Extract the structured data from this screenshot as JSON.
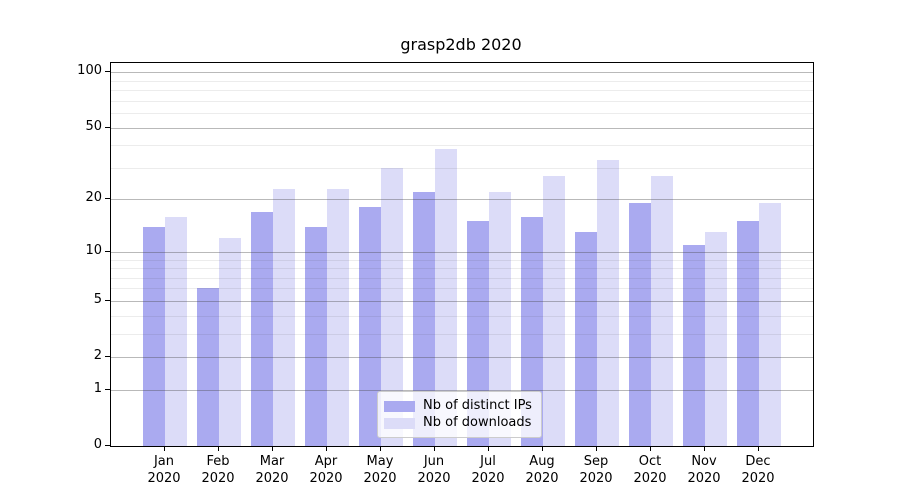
{
  "chart_data": {
    "type": "bar",
    "title": "grasp2db 2020",
    "categories": [
      "Jan 2020",
      "Feb 2020",
      "Mar 2020",
      "Apr 2020",
      "May 2020",
      "Jun 2020",
      "Jul 2020",
      "Aug 2020",
      "Sep 2020",
      "Oct 2020",
      "Nov 2020",
      "Dec 2020"
    ],
    "series": [
      {
        "name": "Nb of distinct IPs",
        "color": "#aaaaf0",
        "values": [
          14,
          6,
          17,
          14,
          18,
          22,
          15,
          16,
          13,
          19,
          11,
          15
        ]
      },
      {
        "name": "Nb of downloads",
        "color": "#dcdcf8",
        "values": [
          16,
          12,
          23,
          23,
          30,
          38,
          22,
          27,
          33,
          27,
          13,
          19
        ]
      }
    ],
    "xlabel": "",
    "ylabel": "",
    "y_scale": "log1p",
    "y_ticks": [
      0,
      1,
      2,
      5,
      10,
      20,
      50,
      100
    ],
    "y_minor_ticks": [
      3,
      4,
      6,
      7,
      8,
      9,
      30,
      40,
      60,
      70,
      80,
      90
    ],
    "ylim": [
      0,
      112
    ],
    "grid": "on",
    "legend_position": "lower center",
    "colors": {
      "axis": "#000000",
      "grid_major": "#b0b0b0",
      "grid_minor": "#e8e8e8",
      "background": "#ffffff"
    }
  }
}
